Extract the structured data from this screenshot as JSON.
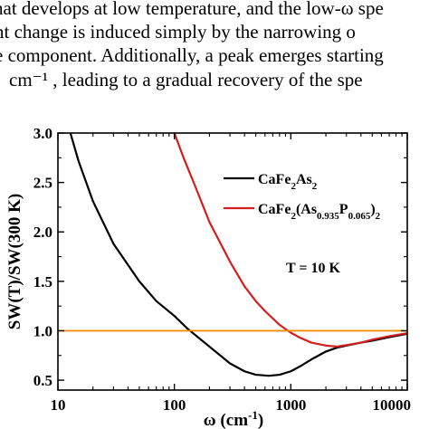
{
  "paper_text": {
    "lines": [
      "hat develops at low temperature, and the low-ω spe",
      "nt change is induced simply by the narrowing o",
      "e component. Additionally, a peak emerges starting",
      "cm⁻¹ , leading to a gradual recovery of the spe"
    ]
  },
  "chart_data": {
    "type": "line",
    "title": "",
    "xlabel": "ω (cm⁻¹)",
    "ylabel": "SW(T)/SW(300 K)",
    "xscale": "log",
    "xlim": [
      10,
      10000
    ],
    "ylim": [
      0.4,
      3.0
    ],
    "xticks": [
      10,
      100,
      1000,
      10000
    ],
    "xtick_labels": [
      "10",
      "100",
      "1000",
      "10000"
    ],
    "yticks": [
      0.5,
      1.0,
      1.5,
      2.0,
      2.5,
      3.0
    ],
    "ytick_labels": [
      "0.5",
      "1.0",
      "1.5",
      "2.0",
      "2.5",
      "3.0"
    ],
    "grid": false,
    "legend_position": "top-right",
    "annotation": "T = 10 K",
    "reference_line": {
      "y": 1.0,
      "color": "#f28c00"
    },
    "series": [
      {
        "name": "CaFe2As2",
        "name_parts": [
          {
            "t": "CaFe",
            "sub": false
          },
          {
            "t": "2",
            "sub": true
          },
          {
            "t": "As",
            "sub": false
          },
          {
            "t": "2",
            "sub": true
          }
        ],
        "color": "#000000",
        "x": [
          12.8,
          15,
          20,
          30,
          50,
          70,
          100,
          130,
          150,
          200,
          300,
          400,
          500,
          650,
          800,
          1000,
          1200,
          1500,
          2000,
          2500,
          3000,
          4000,
          5000,
          7000,
          10000
        ],
        "y": [
          3.0,
          2.72,
          2.31,
          1.88,
          1.5,
          1.3,
          1.15,
          1.02,
          0.96,
          0.84,
          0.67,
          0.59,
          0.555,
          0.545,
          0.555,
          0.59,
          0.64,
          0.71,
          0.79,
          0.83,
          0.85,
          0.88,
          0.9,
          0.935,
          0.97
        ]
      },
      {
        "name": "CaFe2(As0.935P0.065)2",
        "name_parts": [
          {
            "t": "CaFe",
            "sub": false
          },
          {
            "t": "2",
            "sub": true
          },
          {
            "t": "(As",
            "sub": false
          },
          {
            "t": "0.935",
            "sub": true
          },
          {
            "t": "P",
            "sub": false
          },
          {
            "t": "0.065",
            "sub": true
          },
          {
            "t": ")",
            "sub": false
          },
          {
            "t": "2",
            "sub": true
          }
        ],
        "color": "#d41e1e",
        "x": [
          100,
          120,
          150,
          200,
          300,
          400,
          500,
          600,
          800,
          1000,
          1200,
          1500,
          2000,
          2500,
          3000,
          4000,
          5000,
          7000,
          10000
        ],
        "y": [
          3.0,
          2.75,
          2.47,
          2.1,
          1.7,
          1.45,
          1.3,
          1.2,
          1.06,
          0.98,
          0.93,
          0.88,
          0.85,
          0.84,
          0.855,
          0.88,
          0.91,
          0.945,
          0.975
        ]
      }
    ]
  }
}
